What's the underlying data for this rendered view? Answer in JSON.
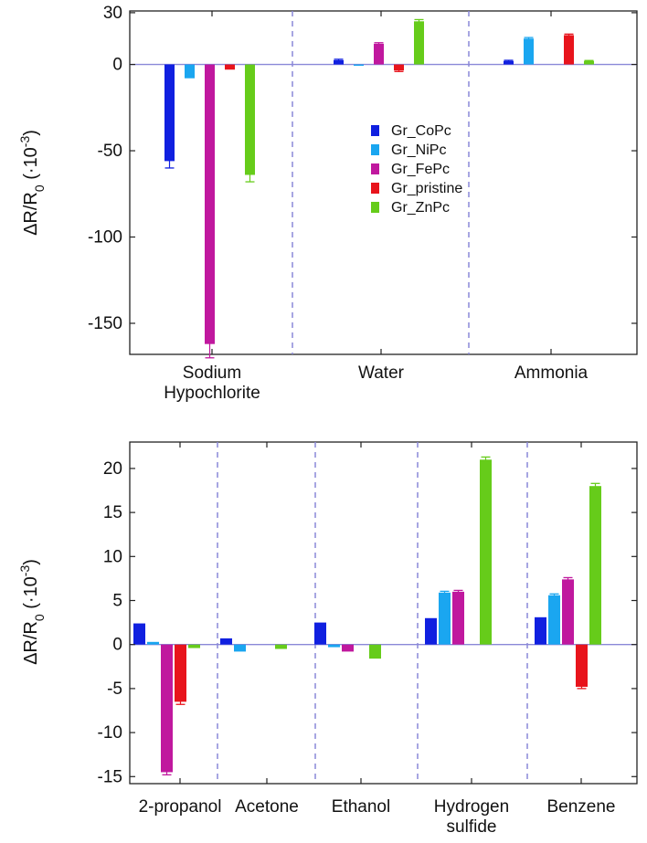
{
  "series_colors": {
    "Gr_CoPc": "#1020e0",
    "Gr_NiPc": "#1aa6f0",
    "Gr_FePc": "#c0189e",
    "Gr_pristine": "#e8141c",
    "Gr_ZnPc": "#66cc1a"
  },
  "separator_color": "#8a88d8",
  "chart_data": [
    {
      "type": "bar",
      "title": "",
      "ylabel": "ΔR/R0 (·10-3)",
      "ylabel_parts": {
        "delta": "Δ",
        "r1": "R/R",
        "sub": "0",
        "mid": " (·10",
        "sup": "-3",
        "end": ")"
      },
      "ylim": [
        -168,
        31
      ],
      "yticks": [
        30,
        0,
        -50,
        -100,
        -150
      ],
      "categories": [
        [
          "Sodium",
          "Hypochlorite"
        ],
        [
          "Water"
        ],
        [
          "Ammonia"
        ]
      ],
      "series": [
        {
          "name": "Gr_CoPc",
          "values": [
            -56,
            2.5,
            2
          ],
          "errors": [
            4,
            0.5,
            0.4
          ]
        },
        {
          "name": "Gr_NiPc",
          "values": [
            -8,
            -0.8,
            15
          ],
          "errors": [
            0,
            0,
            0.6
          ]
        },
        {
          "name": "Gr_FePc",
          "values": [
            -162,
            12,
            0
          ],
          "errors": [
            8,
            0.6,
            0
          ]
        },
        {
          "name": "Gr_pristine",
          "values": [
            -3,
            -3.5,
            17
          ],
          "errors": [
            0,
            0.6,
            0.6
          ]
        },
        {
          "name": "Gr_ZnPc",
          "values": [
            -64,
            25,
            2
          ],
          "errors": [
            4,
            1,
            0.3
          ]
        }
      ],
      "legend": {
        "position": "center-right",
        "entries": [
          "Gr_CoPc",
          "Gr_NiPc",
          "Gr_FePc",
          "Gr_pristine",
          "Gr_ZnPc"
        ]
      }
    },
    {
      "type": "bar",
      "title": "",
      "ylabel": "ΔR/R0 (·10-3)",
      "ylabel_parts": {
        "delta": "Δ",
        "r1": "R/R",
        "sub": "0",
        "mid": " (·10",
        "sup": "-3",
        "end": ")"
      },
      "ylim": [
        -15.8,
        23
      ],
      "yticks": [
        20,
        15,
        10,
        5,
        0,
        -5,
        -10,
        -15
      ],
      "categories": [
        [
          "2-propanol"
        ],
        [
          "Acetone"
        ],
        [
          "Ethanol"
        ],
        [
          "Hydrogen",
          "sulfide"
        ],
        [
          "Benzene"
        ]
      ],
      "series": [
        {
          "name": "Gr_CoPc",
          "values": [
            2.4,
            0.7,
            2.5,
            3.0,
            3.1
          ],
          "errors": [
            0,
            0,
            0,
            0,
            0
          ]
        },
        {
          "name": "Gr_NiPc",
          "values": [
            0.3,
            -0.8,
            -0.3,
            5.9,
            5.6
          ],
          "errors": [
            0,
            0,
            0,
            0.15,
            0.15
          ]
        },
        {
          "name": "Gr_FePc",
          "values": [
            -14.5,
            0,
            -0.8,
            6.0,
            7.4
          ],
          "errors": [
            0.3,
            0,
            0,
            0.15,
            0.2
          ]
        },
        {
          "name": "Gr_pristine",
          "values": [
            -6.5,
            0,
            0,
            0,
            -4.8
          ],
          "errors": [
            0.3,
            0,
            0,
            0,
            0.2
          ]
        },
        {
          "name": "Gr_ZnPc",
          "values": [
            -0.4,
            -0.5,
            -1.6,
            21.0,
            18.0
          ],
          "errors": [
            0,
            0,
            0,
            0.3,
            0.3
          ]
        }
      ]
    }
  ]
}
